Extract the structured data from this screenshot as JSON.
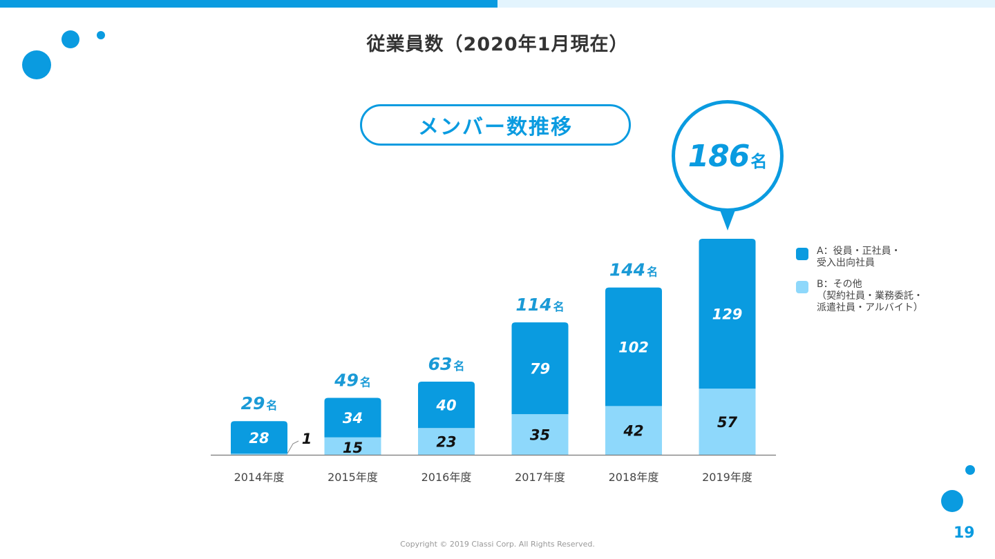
{
  "slide": {
    "title": "従業員数（2020年1月現在）",
    "section_label": "メンバー数推移",
    "highlight": {
      "value": "186",
      "unit": "名"
    },
    "copyright": "Copyright © 2019 Classi Corp. All Rights Reserved.",
    "page_number": "19"
  },
  "legend": {
    "items": [
      {
        "key": "A",
        "lines": [
          "A：役員・正社員・",
          "受入出向社員"
        ]
      },
      {
        "key": "B",
        "lines": [
          "B：その他",
          "（契約社員・業務委託・",
          "派遣社員・アルバイト）"
        ]
      }
    ]
  },
  "colors": {
    "accent": "#0a9be0",
    "series_a": "#0a9be0",
    "series_b": "#8ed8fb",
    "axis": "#777777",
    "title_text": "#333333",
    "total_text": "#1a9ad6",
    "inner_text_a": "#ffffff",
    "inner_text_b": "#111111"
  },
  "chart_data": {
    "type": "bar",
    "stacked": true,
    "title": "メンバー数推移",
    "categories": [
      "2014年度",
      "2015年度",
      "2016年度",
      "2017年度",
      "2018年度",
      "2019年度"
    ],
    "series": [
      {
        "name": "A：役員・正社員・受入出向社員",
        "values": [
          28,
          34,
          40,
          79,
          102,
          129
        ]
      },
      {
        "name": "B：その他（契約社員・業務委託・派遣社員・アルバイト）",
        "values": [
          1,
          15,
          23,
          35,
          42,
          57
        ]
      }
    ],
    "totals": [
      29,
      49,
      63,
      114,
      144,
      186
    ],
    "total_unit": "名",
    "ylim": [
      0,
      186
    ],
    "xlabel": "",
    "ylabel": "",
    "grid": false,
    "legend_position": "right"
  }
}
